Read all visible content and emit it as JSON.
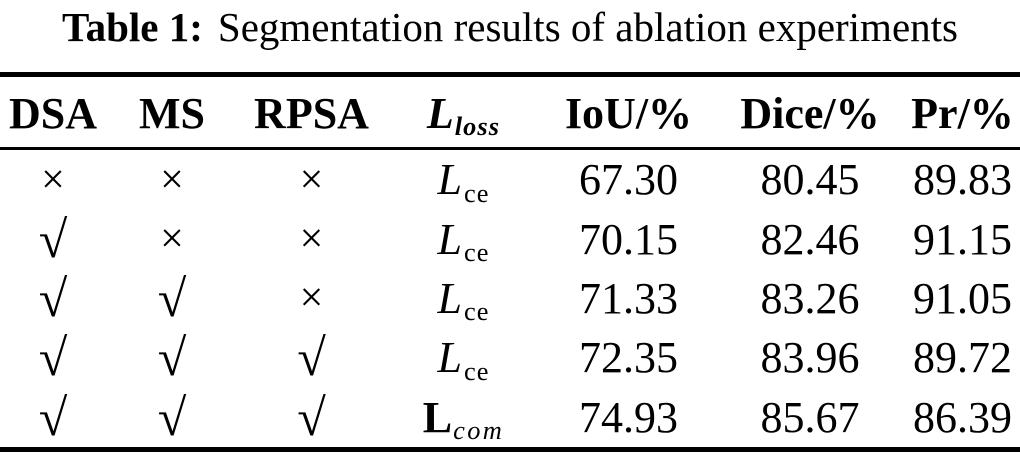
{
  "title": {
    "label": "Table 1:",
    "text": "Segmentation results of ablation experiments"
  },
  "symbols": {
    "check": "√",
    "cross": "×"
  },
  "header": {
    "dsa": "DSA",
    "ms": "MS",
    "rpsa": "RPSA",
    "loss_main": "L",
    "loss_sub": "loss",
    "iou": "IoU/%",
    "dice": "Dice/%",
    "pr": "Pr/%"
  },
  "rows": [
    {
      "marks": [
        "cross",
        "cross",
        "cross"
      ],
      "loss": {
        "main": "L",
        "sub": "ce",
        "style": "math-italic"
      },
      "values": [
        "67.30",
        "80.45",
        "89.83"
      ]
    },
    {
      "marks": [
        "check",
        "cross",
        "cross"
      ],
      "loss": {
        "main": "L",
        "sub": "ce",
        "style": "math-italic"
      },
      "values": [
        "70.15",
        "82.46",
        "91.15"
      ]
    },
    {
      "marks": [
        "check",
        "check",
        "cross"
      ],
      "loss": {
        "main": "L",
        "sub": "ce",
        "style": "math-italic"
      },
      "values": [
        "71.33",
        "83.26",
        "91.05"
      ]
    },
    {
      "marks": [
        "check",
        "check",
        "check"
      ],
      "loss": {
        "main": "L",
        "sub": "ce",
        "style": "math-italic"
      },
      "values": [
        "72.35",
        "83.96",
        "89.72"
      ]
    },
    {
      "marks": [
        "check",
        "check",
        "check"
      ],
      "loss": {
        "main": "L",
        "sub": "com",
        "style": "bold-roman"
      },
      "values": [
        "74.93",
        "85.67",
        "86.39"
      ]
    }
  ]
}
